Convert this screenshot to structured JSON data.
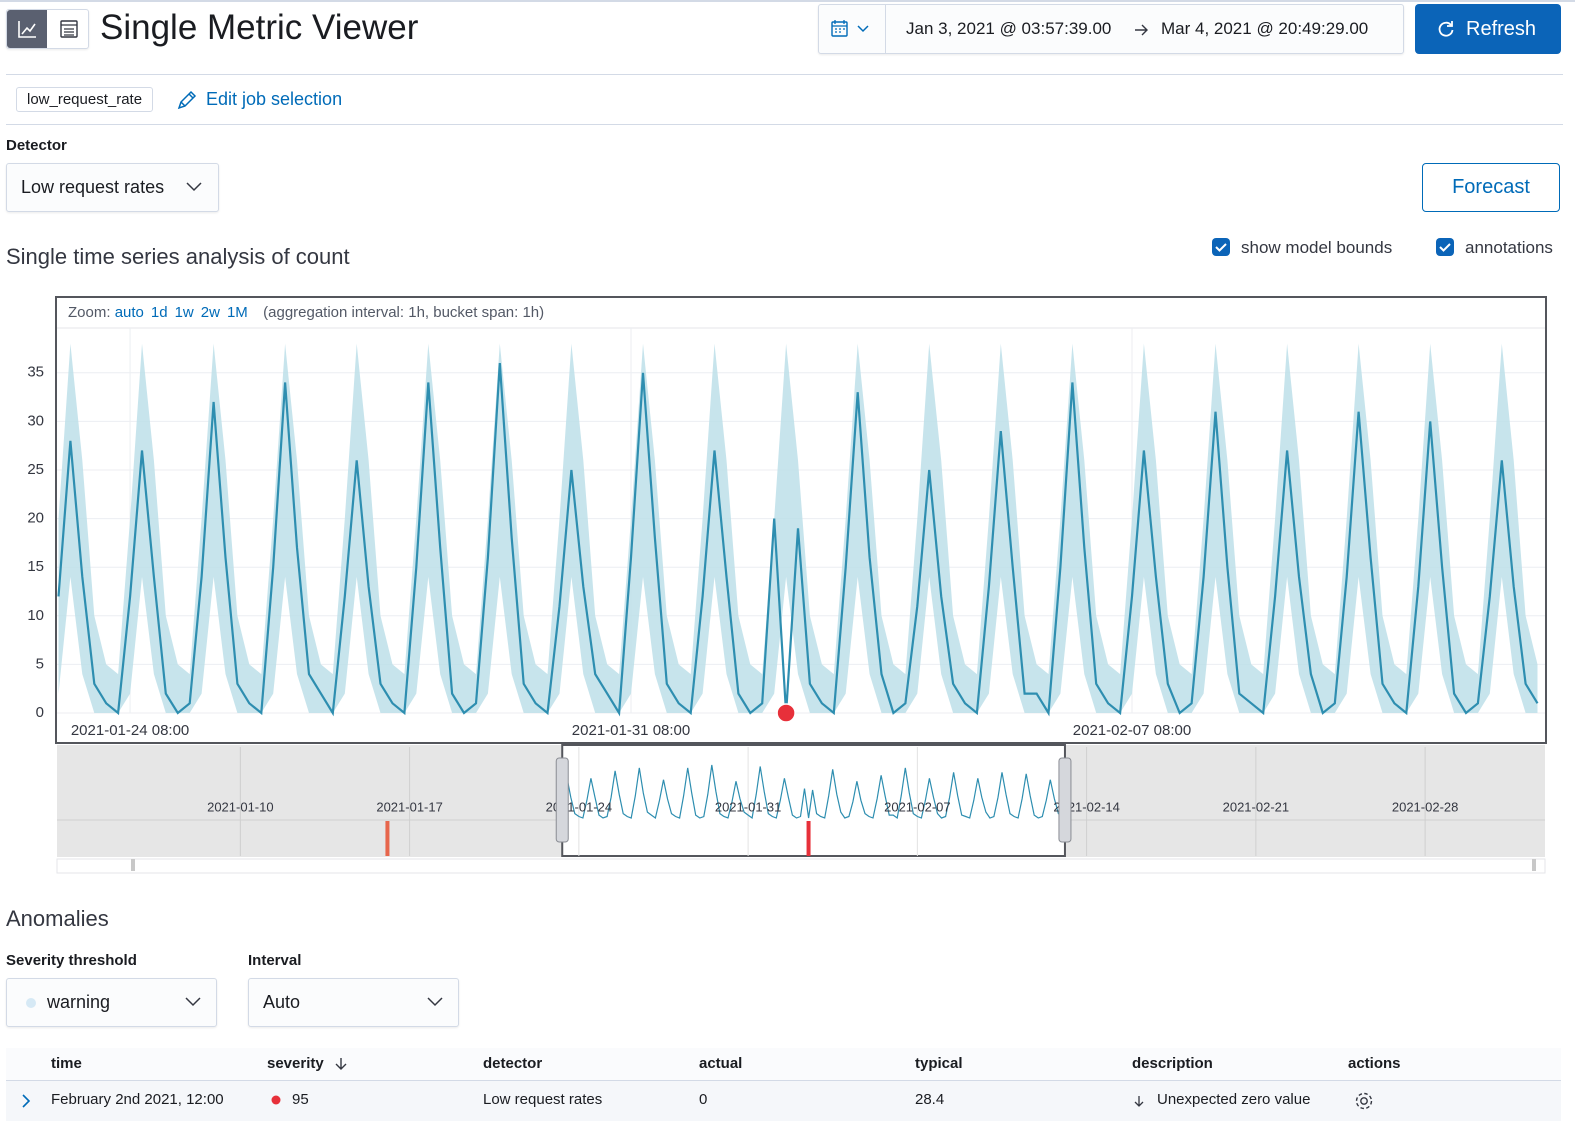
{
  "header": {
    "title": "Single Metric Viewer",
    "date_start": "Jan 3, 2021 @ 03:57:39.00",
    "date_end": "Mar 4, 2021 @ 20:49:29.00",
    "refresh": "Refresh"
  },
  "job": {
    "id": "low_request_rate",
    "edit": "Edit job selection"
  },
  "detector": {
    "label": "Detector",
    "value": "Low request rates"
  },
  "forecast": "Forecast",
  "toggles": {
    "model_bounds": "show model bounds",
    "annotations": "annotations"
  },
  "chart_data": {
    "type": "line",
    "title": "Single time series analysis of count",
    "zoom_label": "Zoom:",
    "zoom_options": [
      "auto",
      "1d",
      "1w",
      "2w",
      "1M"
    ],
    "zoom_note": "(aggregation interval: 1h, bucket span: 1h)",
    "xlim": [
      "2021-01-23 07:30",
      "2021-02-13 02:30"
    ],
    "xticks": [
      "2021-01-24 08:00",
      "2021-01-31 08:00",
      "2021-02-07 08:00"
    ],
    "ylim": [
      0,
      39.4
    ],
    "yticks": [
      0,
      5,
      10,
      15,
      20,
      25,
      30,
      35
    ],
    "grid": true,
    "x": [
      "2021-01-23 08:00",
      "2021-01-23 12:00",
      "2021-01-23 16:00",
      "2021-01-23 20:00",
      "2021-01-24 00:00",
      "2021-01-24 04:00",
      "2021-01-24 08:00",
      "2021-01-24 12:00",
      "2021-01-24 16:00",
      "2021-01-24 20:00",
      "2021-01-25 00:00",
      "2021-01-25 04:00",
      "2021-01-25 08:00",
      "2021-01-25 12:00",
      "2021-01-25 16:00",
      "2021-01-25 20:00",
      "2021-01-26 00:00",
      "2021-01-26 04:00",
      "2021-01-26 08:00",
      "2021-01-26 12:00",
      "2021-01-26 16:00",
      "2021-01-26 20:00",
      "2021-01-27 00:00",
      "2021-01-27 04:00",
      "2021-01-27 08:00",
      "2021-01-27 12:00",
      "2021-01-27 16:00",
      "2021-01-27 20:00",
      "2021-01-28 00:00",
      "2021-01-28 04:00",
      "2021-01-28 08:00",
      "2021-01-28 12:00",
      "2021-01-28 16:00",
      "2021-01-28 20:00",
      "2021-01-29 00:00",
      "2021-01-29 04:00",
      "2021-01-29 08:00",
      "2021-01-29 12:00",
      "2021-01-29 16:00",
      "2021-01-29 20:00",
      "2021-01-30 00:00",
      "2021-01-30 04:00",
      "2021-01-30 08:00",
      "2021-01-30 12:00",
      "2021-01-30 16:00",
      "2021-01-30 20:00",
      "2021-01-31 00:00",
      "2021-01-31 04:00",
      "2021-01-31 08:00",
      "2021-01-31 12:00",
      "2021-01-31 16:00",
      "2021-01-31 20:00",
      "2021-02-01 00:00",
      "2021-02-01 04:00",
      "2021-02-01 08:00",
      "2021-02-01 12:00",
      "2021-02-01 16:00",
      "2021-02-01 20:00",
      "2021-02-02 00:00",
      "2021-02-02 04:00",
      "2021-02-02 08:00",
      "2021-02-02 12:00",
      "2021-02-02 16:00",
      "2021-02-02 20:00",
      "2021-02-03 00:00",
      "2021-02-03 04:00",
      "2021-02-03 08:00",
      "2021-02-03 12:00",
      "2021-02-03 16:00",
      "2021-02-03 20:00",
      "2021-02-04 00:00",
      "2021-02-04 04:00",
      "2021-02-04 08:00",
      "2021-02-04 12:00",
      "2021-02-04 16:00",
      "2021-02-04 20:00",
      "2021-02-05 00:00",
      "2021-02-05 04:00",
      "2021-02-05 08:00",
      "2021-02-05 12:00",
      "2021-02-05 16:00",
      "2021-02-05 20:00",
      "2021-02-06 00:00",
      "2021-02-06 04:00",
      "2021-02-06 08:00",
      "2021-02-06 12:00",
      "2021-02-06 16:00",
      "2021-02-06 20:00",
      "2021-02-07 00:00",
      "2021-02-07 04:00",
      "2021-02-07 08:00",
      "2021-02-07 12:00",
      "2021-02-07 16:00",
      "2021-02-07 20:00",
      "2021-02-08 00:00",
      "2021-02-08 04:00",
      "2021-02-08 08:00",
      "2021-02-08 12:00",
      "2021-02-08 16:00",
      "2021-02-08 20:00",
      "2021-02-09 00:00",
      "2021-02-09 04:00",
      "2021-02-09 08:00",
      "2021-02-09 12:00",
      "2021-02-09 16:00",
      "2021-02-09 20:00",
      "2021-02-10 00:00",
      "2021-02-10 04:00",
      "2021-02-10 08:00",
      "2021-02-10 12:00",
      "2021-02-10 16:00",
      "2021-02-10 20:00",
      "2021-02-11 00:00",
      "2021-02-11 04:00",
      "2021-02-11 08:00",
      "2021-02-11 12:00",
      "2021-02-11 16:00",
      "2021-02-11 20:00",
      "2021-02-12 00:00",
      "2021-02-12 04:00",
      "2021-02-12 08:00",
      "2021-02-12 12:00",
      "2021-02-12 16:00",
      "2021-02-12 20:00",
      "2021-02-13 00:00"
    ],
    "series": [
      {
        "color": "#2e8eb0",
        "values": [
          12,
          28,
          14,
          3,
          1,
          0,
          12,
          27,
          14,
          2,
          0,
          1,
          14,
          32,
          16,
          3,
          1,
          0,
          15,
          34,
          17,
          4,
          2,
          0,
          12,
          26,
          13,
          3,
          1,
          0,
          15,
          34,
          17,
          2,
          0,
          1,
          16,
          36,
          18,
          3,
          1,
          0,
          11,
          25,
          13,
          4,
          2,
          0,
          16,
          35,
          18,
          3,
          1,
          0,
          12,
          27,
          14,
          2,
          0,
          1,
          20,
          0,
          19,
          3,
          1,
          0,
          15,
          33,
          16,
          4,
          0,
          1,
          11,
          25,
          12,
          3,
          1,
          0,
          13,
          29,
          15,
          2,
          2,
          0,
          15,
          34,
          17,
          3,
          1,
          0,
          12,
          27,
          14,
          3,
          0,
          1,
          14,
          31,
          15,
          2,
          1,
          0,
          12,
          27,
          14,
          4,
          0,
          1,
          14,
          31,
          16,
          3,
          1,
          0,
          13,
          30,
          15,
          2,
          0,
          1,
          12,
          26,
          13,
          3,
          1
        ]
      }
    ],
    "bounds": {
      "color": "#bddfe9",
      "upper": [
        20,
        38,
        26,
        10,
        5,
        4,
        20,
        38,
        26,
        10,
        5,
        4,
        20,
        38,
        26,
        10,
        5,
        4,
        20,
        38,
        26,
        10,
        5,
        4,
        20,
        38,
        26,
        10,
        5,
        4,
        20,
        38,
        26,
        10,
        5,
        4,
        20,
        38,
        26,
        10,
        5,
        4,
        20,
        38,
        26,
        10,
        5,
        4,
        20,
        38,
        26,
        10,
        5,
        4,
        20,
        38,
        26,
        10,
        5,
        4,
        20,
        38,
        26,
        10,
        5,
        4,
        20,
        38,
        26,
        10,
        5,
        4,
        20,
        38,
        26,
        10,
        5,
        4,
        20,
        38,
        26,
        10,
        5,
        4,
        20,
        38,
        26,
        10,
        5,
        4,
        20,
        38,
        26,
        10,
        5,
        4,
        20,
        38,
        26,
        10,
        5,
        4,
        20,
        38,
        26,
        10,
        5,
        4,
        20,
        38,
        26,
        10,
        5,
        4,
        20,
        38,
        26,
        10,
        5,
        4,
        20,
        38,
        26,
        10,
        5
      ],
      "lower": [
        2,
        14,
        4,
        0,
        0,
        0,
        2,
        14,
        4,
        0,
        0,
        0,
        2,
        14,
        4,
        0,
        0,
        0,
        2,
        14,
        4,
        0,
        0,
        0,
        2,
        14,
        4,
        0,
        0,
        0,
        2,
        14,
        4,
        0,
        0,
        0,
        2,
        14,
        4,
        0,
        0,
        0,
        2,
        14,
        4,
        0,
        0,
        0,
        2,
        14,
        4,
        0,
        0,
        0,
        2,
        14,
        4,
        0,
        0,
        0,
        2,
        14,
        4,
        0,
        0,
        0,
        2,
        14,
        4,
        0,
        0,
        0,
        2,
        14,
        4,
        0,
        0,
        0,
        2,
        14,
        4,
        0,
        0,
        0,
        2,
        14,
        4,
        0,
        0,
        0,
        2,
        14,
        4,
        0,
        0,
        0,
        2,
        14,
        4,
        0,
        0,
        0,
        2,
        14,
        4,
        0,
        0,
        0,
        2,
        14,
        4,
        0,
        0,
        0,
        2,
        14,
        4,
        0,
        0,
        0,
        2,
        14,
        4,
        0,
        0
      ]
    },
    "anomaly_markers": [
      {
        "x": "2021-02-02 12:00",
        "value": 0,
        "color": "#e7303a"
      }
    ],
    "overview": {
      "xlim": [
        "2021-01-02 10:00",
        "2021-03-04 23:00"
      ],
      "xticks": [
        "2021-01-10",
        "2021-01-17",
        "2021-01-24",
        "2021-01-31",
        "2021-02-07",
        "2021-02-14",
        "2021-02-21",
        "2021-02-28"
      ],
      "markers": [
        {
          "x": "2021-01-16 02:00",
          "color": "#e7664c"
        },
        {
          "x": "2021-02-02 12:00",
          "color": "#e7303a"
        }
      ]
    }
  },
  "anomalies": {
    "title": "Anomalies",
    "severity_label": "Severity threshold",
    "severity": "warning",
    "interval_label": "Interval",
    "interval": "Auto",
    "table": {
      "columns": [
        "time",
        "severity",
        "detector",
        "actual",
        "typical",
        "description",
        "actions"
      ],
      "rows": [
        [
          "February 2nd 2021, 12:00",
          95,
          "Low request rates",
          0,
          28.4,
          "Unexpected zero value"
        ]
      ]
    }
  }
}
